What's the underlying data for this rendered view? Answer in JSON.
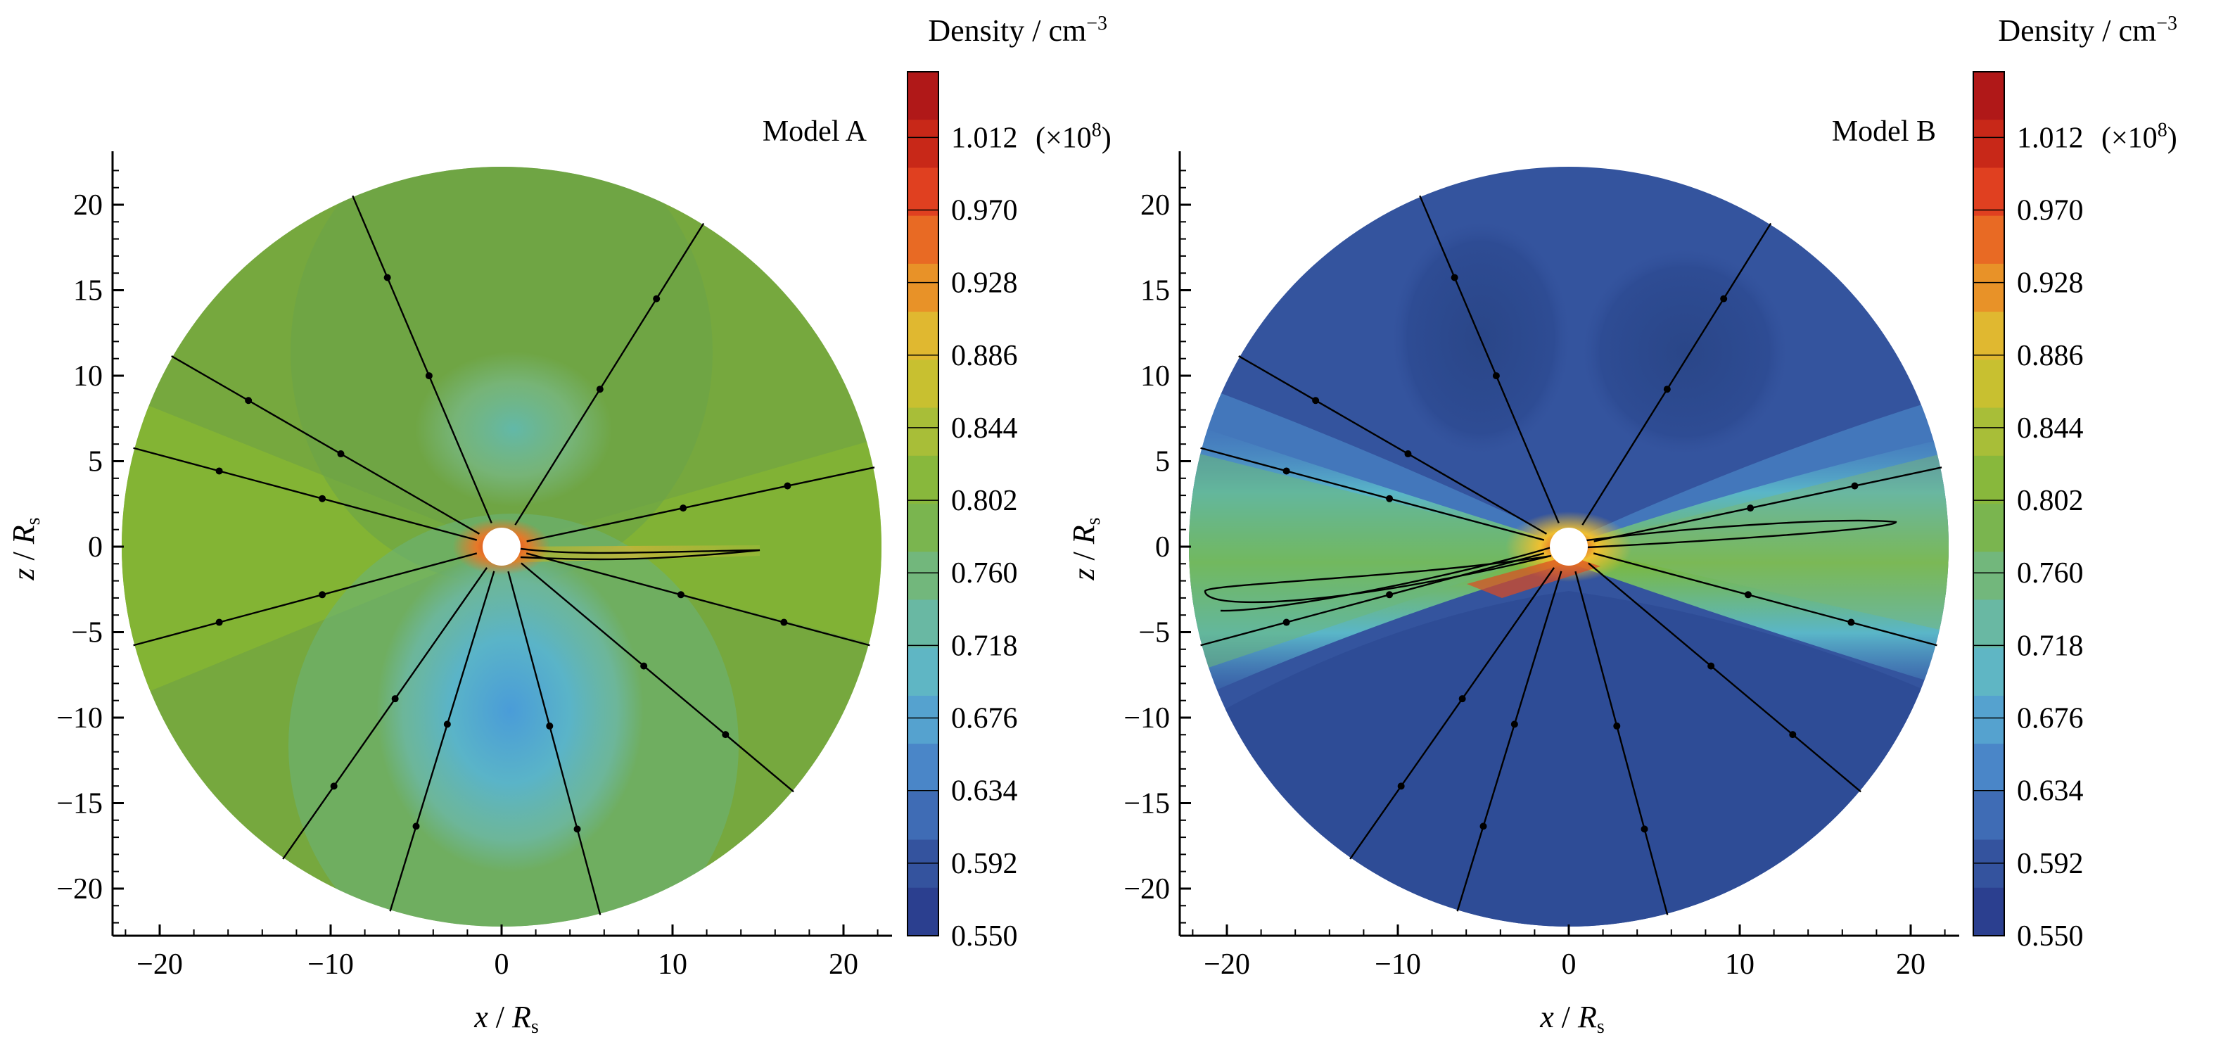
{
  "chart_data": [
    {
      "type": "heatmap",
      "title": "Model A",
      "xlabel_var": "x",
      "xlabel_sub": "s",
      "ylabel_var": "z",
      "ylabel_sub": "s",
      "xlabel_unit": "R",
      "ylabel_unit": "R",
      "xlim": [
        -23,
        23
      ],
      "ylim": [
        -23,
        23
      ],
      "xticks": [
        -20,
        -10,
        0,
        10,
        20
      ],
      "yticks": [
        -20,
        -15,
        -10,
        -5,
        0,
        5,
        10,
        15,
        20
      ],
      "xtick_labels": [
        "−20",
        "−10",
        "0",
        "10",
        "20"
      ],
      "ytick_labels": [
        "−20",
        "−15",
        "−10",
        "−5",
        "0",
        "5",
        "10",
        "15",
        "20"
      ],
      "domain_radius": 22.3,
      "colorbar": {
        "title": "Density / cm",
        "title_exp": "−3",
        "scale_note": "(×10",
        "scale_exp": "8",
        "scale_close": ")",
        "labels": [
          "1.012",
          "0.970",
          "0.928",
          "0.886",
          "0.844",
          "0.802",
          "0.760",
          "0.718",
          "0.676",
          "0.634",
          "0.592",
          "0.550"
        ],
        "min": 0.55,
        "max": 1.05
      },
      "field_lines_deg": [
        -107,
        -75,
        -40,
        -15,
        165,
        150,
        113,
        58,
        12,
        235,
        195
      ],
      "colors": {
        "bg": "#7aaa42",
        "pole_s": "#5ab4c8",
        "pole_n": "#72b890",
        "sheet": "#c8b838",
        "core": "#e84020"
      }
    },
    {
      "type": "heatmap",
      "title": "Model B",
      "xlabel_var": "x",
      "xlabel_sub": "s",
      "ylabel_var": "z",
      "ylabel_sub": "s",
      "xlabel_unit": "R",
      "ylabel_unit": "R",
      "xlim": [
        -23,
        23
      ],
      "ylim": [
        -23,
        23
      ],
      "xticks": [
        -20,
        -10,
        0,
        10,
        20
      ],
      "yticks": [
        -20,
        -15,
        -10,
        -5,
        0,
        5,
        10,
        15,
        20
      ],
      "xtick_labels": [
        "−20",
        "−10",
        "0",
        "10",
        "20"
      ],
      "ytick_labels": [
        "−20",
        "−15",
        "−10",
        "−5",
        "0",
        "5",
        "10",
        "15",
        "20"
      ],
      "domain_radius": 22.3,
      "colorbar": {
        "title": "Density / cm",
        "title_exp": "−3",
        "scale_note": "(×10",
        "scale_exp": "8",
        "scale_close": ")",
        "labels": [
          "1.012",
          "0.970",
          "0.928",
          "0.886",
          "0.844",
          "0.802",
          "0.760",
          "0.718",
          "0.676",
          "0.634",
          "0.592",
          "0.550"
        ],
        "min": 0.55,
        "max": 1.05
      },
      "field_lines_deg": [
        -107,
        -75,
        -40,
        -15,
        165,
        150,
        113,
        58,
        12,
        235,
        195
      ],
      "colors": {
        "bg": "#2f4f9a",
        "pole_s": "#2a4a92",
        "pole_n": "#34539e",
        "sheet": "#6cbcaa",
        "core": "#e84020"
      }
    }
  ]
}
